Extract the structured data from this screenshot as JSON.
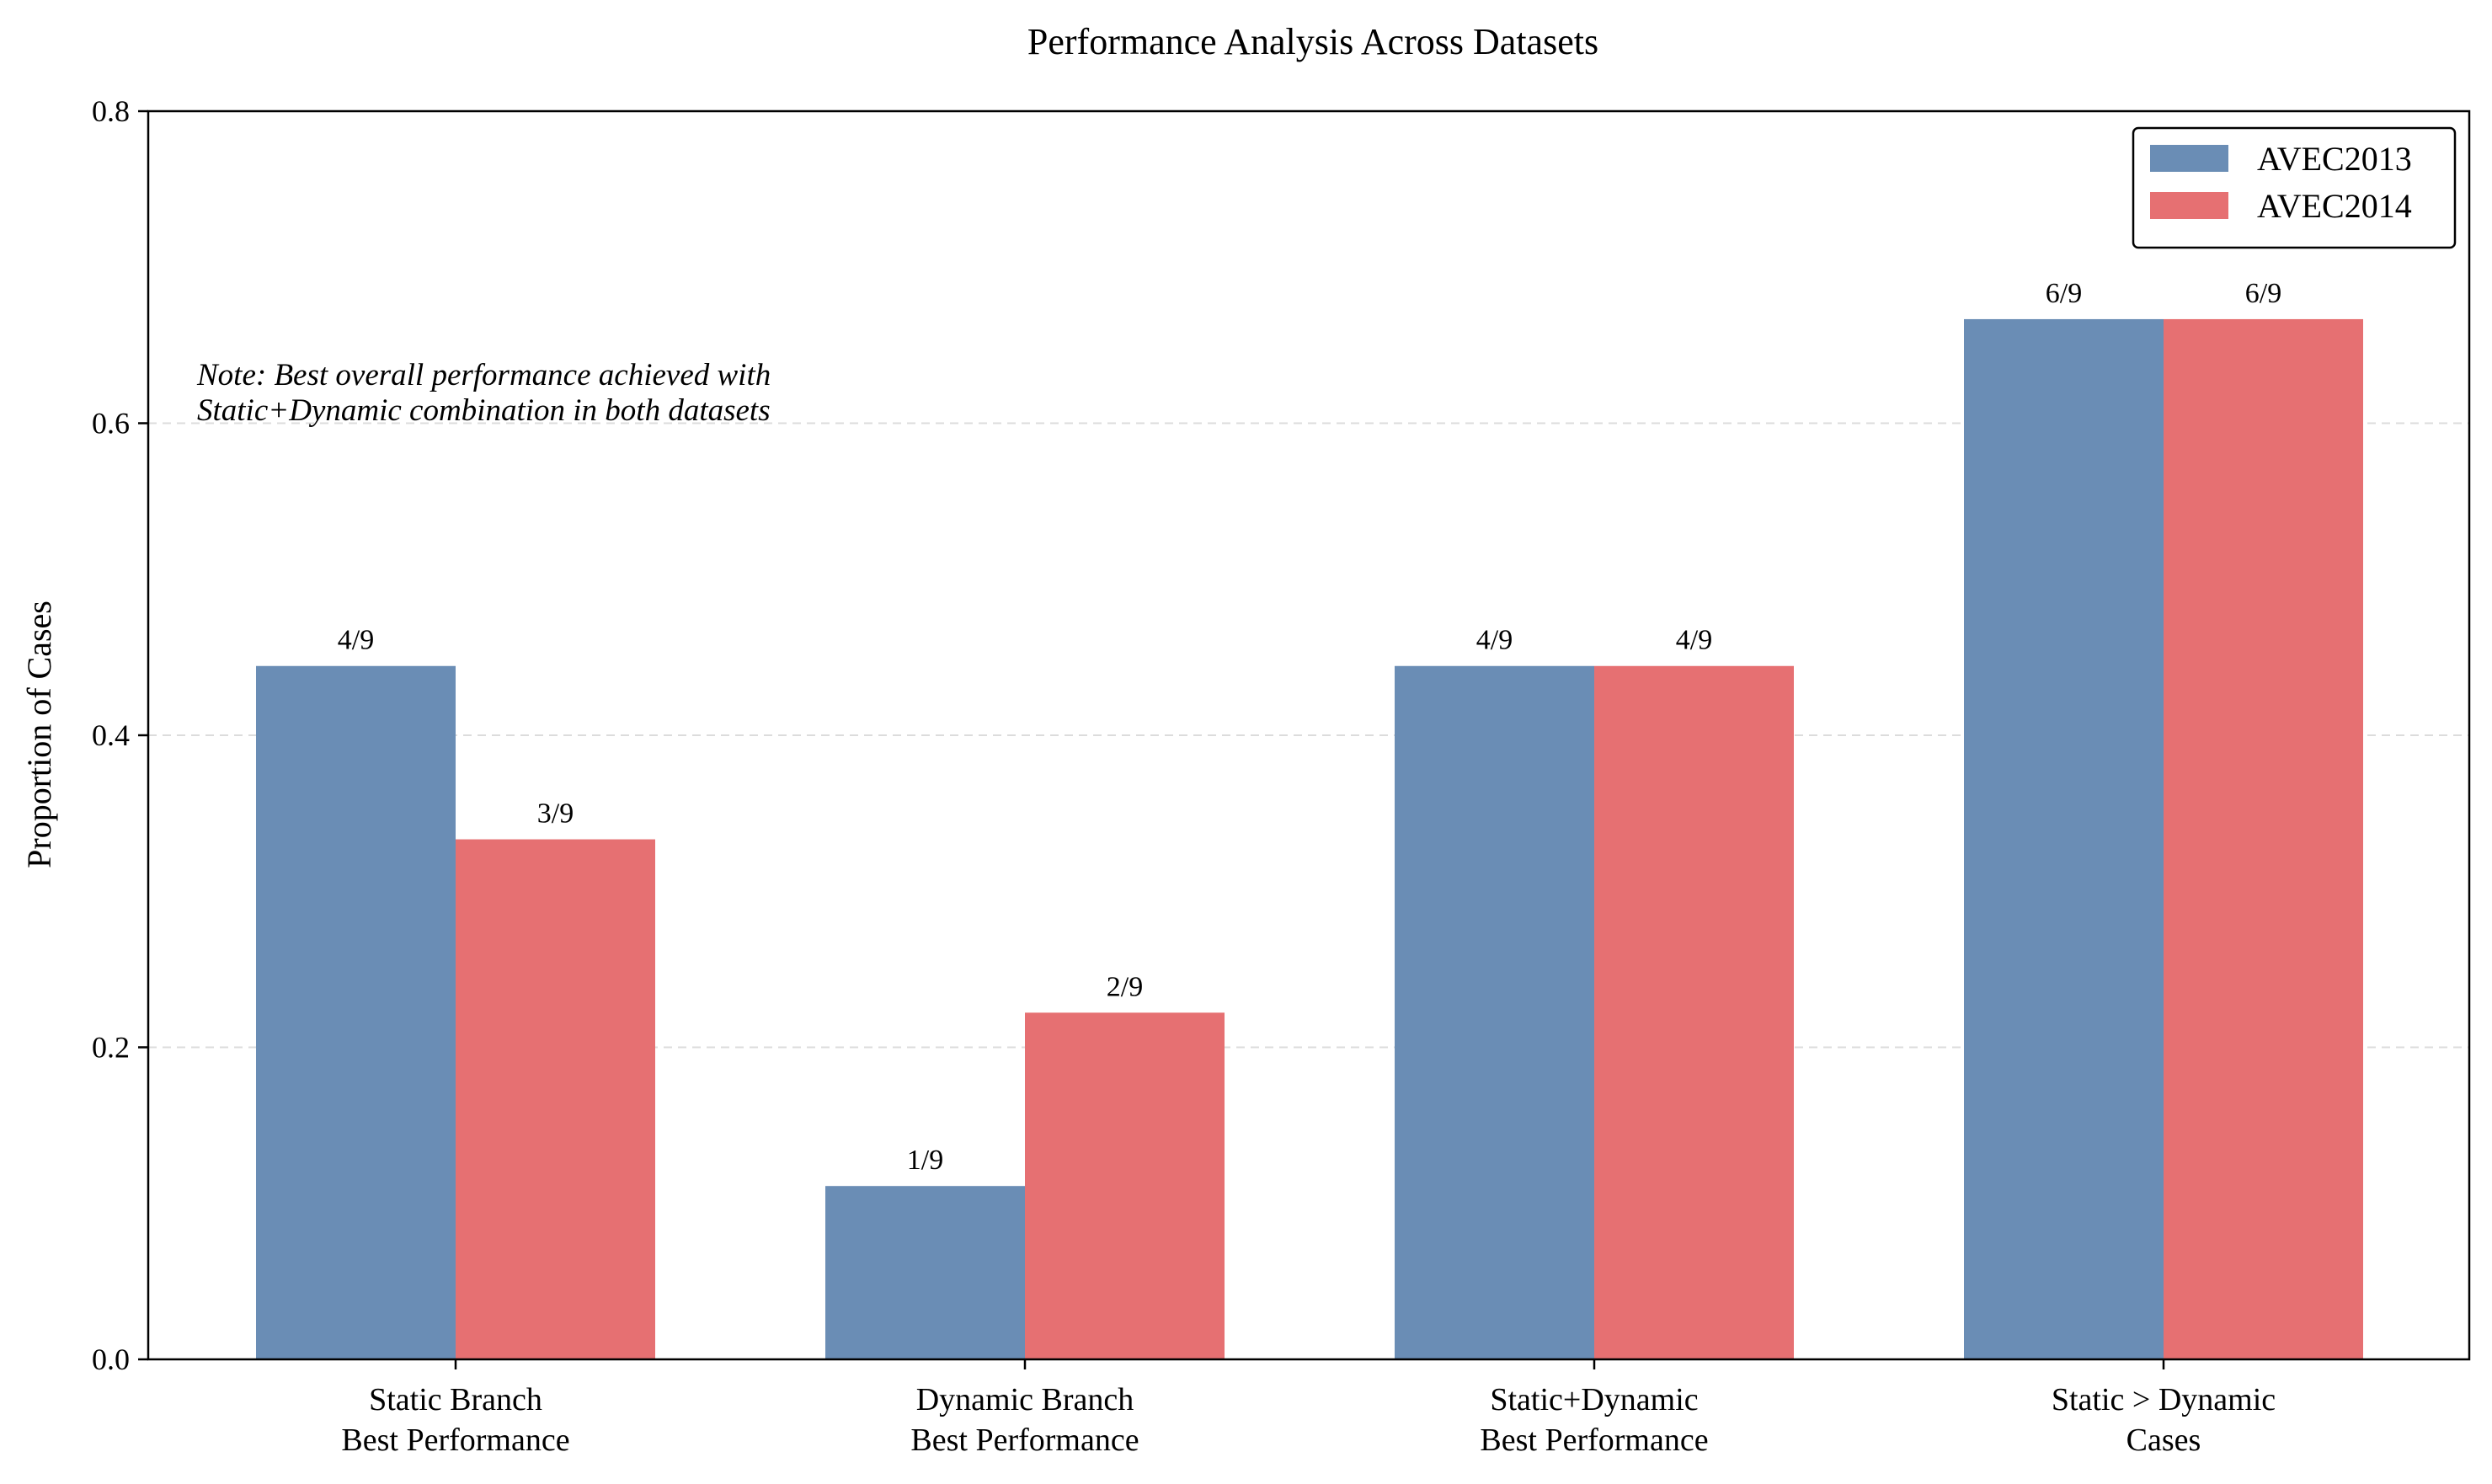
{
  "chart_data": {
    "type": "bar",
    "title": "Performance Analysis Across Datasets",
    "xlabel": "",
    "ylabel": "Proportion of Cases",
    "ylim": [
      0,
      0.8
    ],
    "yticks": [
      "0.0",
      "0.2",
      "0.4",
      "0.6",
      "0.8"
    ],
    "grid": "horizontal dashed",
    "legend_position": "top-right",
    "categories": [
      [
        "Static Branch",
        "Best Performance"
      ],
      [
        "Dynamic Branch",
        "Best Performance"
      ],
      [
        "Static+Dynamic",
        "Best Performance"
      ],
      [
        "Static > Dynamic",
        "Cases"
      ]
    ],
    "series": [
      {
        "name": "AVEC2013",
        "color": "#6a8db5",
        "values": [
          0.4444,
          0.1111,
          0.4444,
          0.6667
        ],
        "labels": [
          "4/9",
          "1/9",
          "4/9",
          "6/9"
        ]
      },
      {
        "name": "AVEC2014",
        "color": "#e67072",
        "values": [
          0.3333,
          0.2222,
          0.4444,
          0.6667
        ],
        "labels": [
          "3/9",
          "2/9",
          "4/9",
          "6/9"
        ]
      }
    ],
    "annotation": [
      "Note: Best overall performance achieved with",
      "Static+Dynamic combination in both datasets"
    ]
  }
}
